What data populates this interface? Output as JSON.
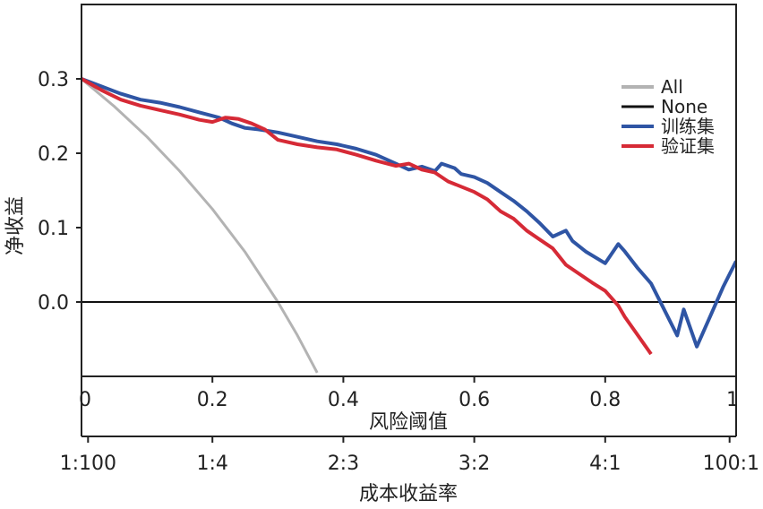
{
  "chart_data": {
    "type": "line",
    "ylabel": "净收益",
    "xlabel": "风险阈值",
    "x2label": "成本收益率",
    "xlim": [
      0,
      1
    ],
    "ylim": [
      -0.1,
      0.4
    ],
    "yticks": [
      {
        "value": 0.3,
        "label": "0.3"
      },
      {
        "value": 0.2,
        "label": "0.2"
      },
      {
        "value": 0.1,
        "label": "0.1"
      },
      {
        "value": 0.0,
        "label": "0.0"
      }
    ],
    "xticks": [
      {
        "value": 0,
        "label": "0"
      },
      {
        "value": 0.2,
        "label": "0.2"
      },
      {
        "value": 0.4,
        "label": "0.4"
      },
      {
        "value": 0.6,
        "label": "0.6"
      },
      {
        "value": 0.8,
        "label": "0.8"
      },
      {
        "value": 1.0,
        "label": "1"
      }
    ],
    "x2ticks": [
      {
        "value": 0.01,
        "label": "1:100"
      },
      {
        "value": 0.2,
        "label": "1:4"
      },
      {
        "value": 0.4,
        "label": "2:3"
      },
      {
        "value": 0.6,
        "label": "3:2"
      },
      {
        "value": 0.8,
        "label": "4:1"
      },
      {
        "value": 0.99,
        "label": "100:1"
      }
    ],
    "legend_position": "right",
    "grid": false,
    "series": [
      {
        "name": "All",
        "color": "#b3b3b3",
        "x": [
          0.0,
          0.05,
          0.1,
          0.15,
          0.2,
          0.25,
          0.3,
          0.33,
          0.36
        ],
        "y": [
          0.3,
          0.263,
          0.222,
          0.176,
          0.125,
          0.067,
          0.0,
          -0.045,
          -0.095
        ]
      },
      {
        "name": "None",
        "color": "#111111",
        "x": [
          0.0,
          1.0
        ],
        "y": [
          0.0,
          0.0
        ]
      },
      {
        "name": "训练集",
        "color": "#2f55a4",
        "x": [
          0.0,
          0.03,
          0.06,
          0.09,
          0.12,
          0.15,
          0.18,
          0.21,
          0.23,
          0.25,
          0.27,
          0.3,
          0.33,
          0.36,
          0.39,
          0.42,
          0.45,
          0.48,
          0.5,
          0.52,
          0.54,
          0.55,
          0.57,
          0.58,
          0.6,
          0.62,
          0.64,
          0.66,
          0.68,
          0.7,
          0.72,
          0.74,
          0.75,
          0.77,
          0.8,
          0.82,
          0.83,
          0.85,
          0.87,
          0.89,
          0.91,
          0.92,
          0.94,
          0.96,
          0.98,
          1.0
        ],
        "y": [
          0.3,
          0.29,
          0.28,
          0.272,
          0.268,
          0.262,
          0.255,
          0.248,
          0.24,
          0.234,
          0.232,
          0.228,
          0.222,
          0.216,
          0.212,
          0.206,
          0.198,
          0.186,
          0.178,
          0.182,
          0.176,
          0.186,
          0.18,
          0.172,
          0.168,
          0.16,
          0.148,
          0.136,
          0.122,
          0.106,
          0.088,
          0.096,
          0.082,
          0.068,
          0.052,
          0.078,
          0.068,
          0.045,
          0.025,
          -0.01,
          -0.045,
          -0.01,
          -0.06,
          -0.02,
          0.02,
          0.055
        ]
      },
      {
        "name": "验证集",
        "color": "#d62a36",
        "x": [
          0.0,
          0.03,
          0.06,
          0.09,
          0.12,
          0.15,
          0.18,
          0.2,
          0.22,
          0.24,
          0.26,
          0.28,
          0.3,
          0.33,
          0.36,
          0.39,
          0.42,
          0.45,
          0.48,
          0.5,
          0.52,
          0.54,
          0.56,
          0.58,
          0.6,
          0.62,
          0.64,
          0.66,
          0.68,
          0.7,
          0.72,
          0.74,
          0.76,
          0.78,
          0.8,
          0.82,
          0.83,
          0.85,
          0.87
        ],
        "y": [
          0.3,
          0.285,
          0.272,
          0.264,
          0.258,
          0.252,
          0.245,
          0.242,
          0.248,
          0.246,
          0.24,
          0.232,
          0.218,
          0.212,
          0.208,
          0.205,
          0.198,
          0.19,
          0.183,
          0.186,
          0.178,
          0.174,
          0.162,
          0.155,
          0.148,
          0.138,
          0.122,
          0.112,
          0.096,
          0.084,
          0.072,
          0.05,
          0.038,
          0.026,
          0.015,
          -0.005,
          -0.02,
          -0.045,
          -0.07
        ]
      }
    ]
  }
}
